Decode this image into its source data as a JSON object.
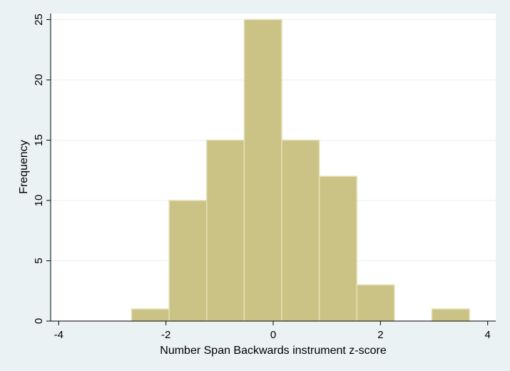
{
  "chart_data": {
    "type": "bar",
    "subtype": "histogram",
    "xlabel": "Number Span Backwards instrument z-score",
    "ylabel": "Frequency",
    "xlim": [
      -4.15,
      4.15
    ],
    "ylim": [
      0,
      25.5
    ],
    "xticks": [
      -4,
      -2,
      0,
      2,
      4
    ],
    "xtick_labels": [
      "-4",
      "-2",
      "0",
      "2",
      "4"
    ],
    "yticks": [
      0,
      5,
      10,
      15,
      20,
      25
    ],
    "ytick_labels": [
      "0",
      "5",
      "10",
      "15",
      "20",
      "25"
    ],
    "grid": true,
    "bins": [
      {
        "x0": -2.64,
        "x1": -1.94,
        "count": 1
      },
      {
        "x0": -1.94,
        "x1": -1.24,
        "count": 10
      },
      {
        "x0": -1.24,
        "x1": -0.54,
        "count": 15
      },
      {
        "x0": -0.54,
        "x1": 0.16,
        "count": 25
      },
      {
        "x0": 0.16,
        "x1": 0.86,
        "count": 15
      },
      {
        "x0": 0.86,
        "x1": 1.56,
        "count": 12
      },
      {
        "x0": 1.56,
        "x1": 2.26,
        "count": 3
      },
      {
        "x0": 2.26,
        "x1": 2.96,
        "count": 0
      },
      {
        "x0": 2.96,
        "x1": 3.66,
        "count": 1
      }
    ],
    "colors": {
      "background": "#eaf2f3",
      "plot_background": "#ffffff",
      "bar_fill": "#cbc385",
      "bar_stroke": "#e4dfb8",
      "grid": "#e8eef0",
      "axis": "#000000"
    }
  }
}
